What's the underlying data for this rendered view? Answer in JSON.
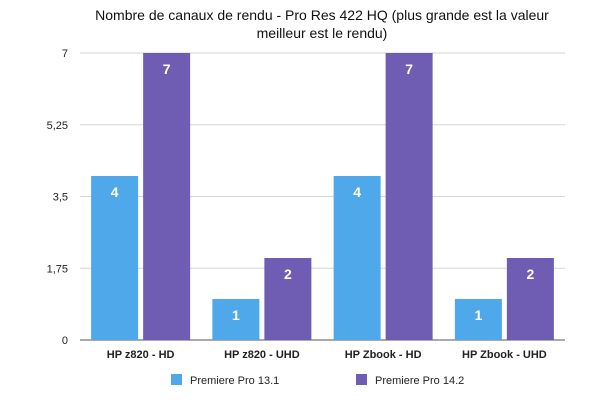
{
  "chart_data": {
    "type": "bar",
    "title_lines": [
      "Nombre de canaux de rendu - Pro Res 422 HQ (plus grande est la valeur",
      "meilleur est le rendu)"
    ],
    "categories": [
      "HP z820 - HD",
      "HP z820 - UHD",
      "HP Zbook - HD",
      "HP Zbook - UHD"
    ],
    "series": [
      {
        "name": "Premiere Pro 13.1",
        "values": [
          4,
          1,
          4,
          1
        ],
        "color": "#4fa8ea"
      },
      {
        "name": "Premiere Pro 14.2",
        "values": [
          7,
          2,
          7,
          2
        ],
        "color": "#6f5db3"
      }
    ],
    "ylim": [
      0,
      7
    ],
    "yticks": [
      0,
      1.75,
      3.5,
      5.25,
      7
    ],
    "ytick_labels": [
      "0",
      "1,75",
      "3,5",
      "5,25",
      "7"
    ],
    "grid": true,
    "legend_position": "bottom",
    "data_labels": true
  }
}
